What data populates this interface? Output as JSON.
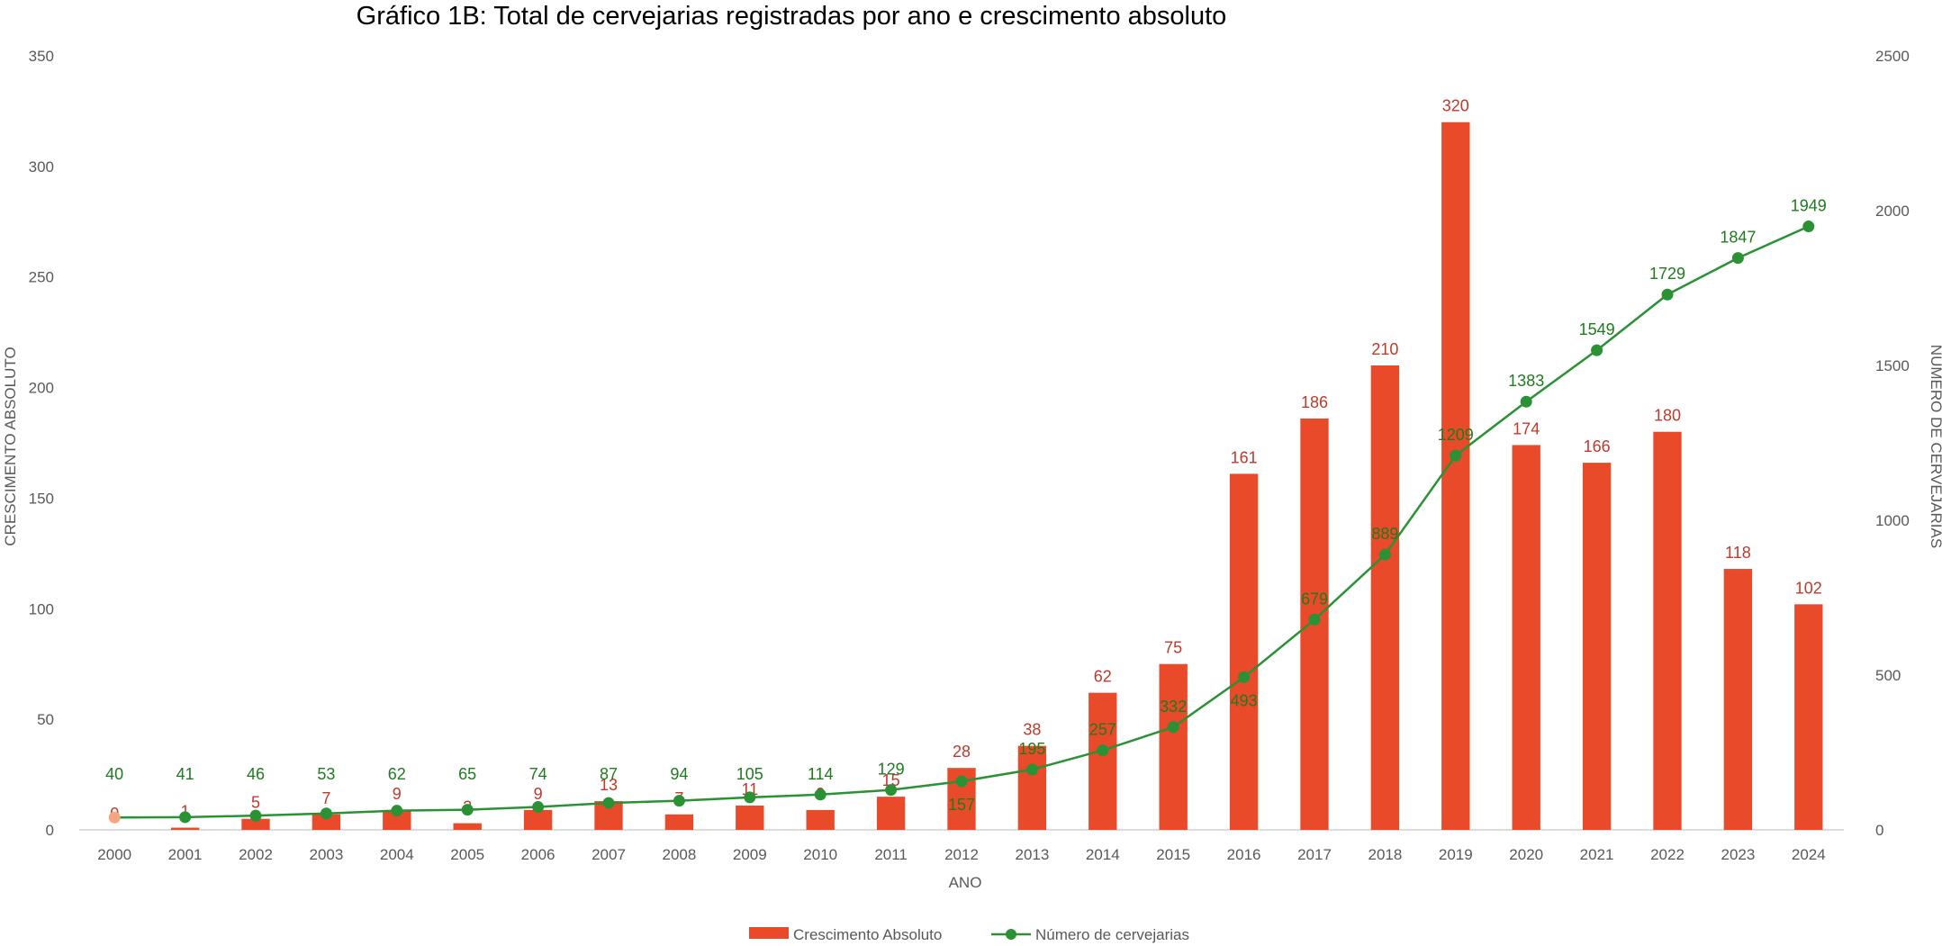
{
  "chart_data": {
    "type": "bar",
    "title": "Gráfico 1B: Total de cervejarias registradas por ano e crescimento absoluto",
    "xlabel": "ANO",
    "ylabel": "CRESCIMENTO ABSOLUTO",
    "y2label": "NÚMERO DE CERVEJARIAS",
    "ylim": [
      0,
      350
    ],
    "y2lim": [
      0,
      2500
    ],
    "yticks": [
      0,
      50,
      100,
      150,
      200,
      250,
      300,
      350
    ],
    "y2ticks": [
      0,
      500,
      1000,
      1500,
      2000,
      2500
    ],
    "categories": [
      "2000",
      "2001",
      "2002",
      "2003",
      "2004",
      "2005",
      "2006",
      "2007",
      "2008",
      "2009",
      "2010",
      "2011",
      "2012",
      "2013",
      "2014",
      "2015",
      "2016",
      "2017",
      "2018",
      "2019",
      "2020",
      "2021",
      "2022",
      "2023",
      "2024"
    ],
    "series": [
      {
        "name": "Crescimento Absoluto",
        "type": "bar",
        "axis": "left",
        "color": "#E84A2A",
        "label_color": "#C0392B",
        "values": [
          0,
          1,
          5,
          7,
          9,
          3,
          9,
          13,
          7,
          11,
          9,
          15,
          28,
          38,
          62,
          75,
          161,
          186,
          210,
          320,
          174,
          166,
          180,
          118,
          102
        ]
      },
      {
        "name": "Número de cervejarias",
        "type": "line",
        "axis": "right",
        "color": "#2A9134",
        "label_color": "#1E7B1E",
        "values": [
          40,
          41,
          46,
          53,
          62,
          65,
          74,
          87,
          94,
          105,
          114,
          129,
          157,
          195,
          257,
          332,
          493,
          679,
          889,
          1209,
          1383,
          1549,
          1729,
          1847,
          1949
        ]
      }
    ],
    "grid": false,
    "legend_position": "bottom"
  }
}
